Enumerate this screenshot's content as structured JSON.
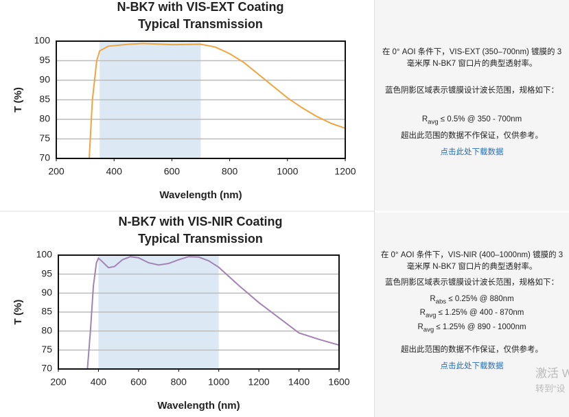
{
  "chart_data": [
    {
      "type": "line",
      "title": "N-BK7 with VIS-EXT Coating",
      "subtitle": "Typical Transmission",
      "x_label": "Wavelength (nm)",
      "y_label": "T (%)",
      "xlim": [
        200,
        1200
      ],
      "xticks": [
        200,
        400,
        600,
        800,
        1000,
        1200
      ],
      "ylim": [
        70,
        100
      ],
      "yticks": [
        70,
        75,
        80,
        85,
        90,
        95,
        100
      ],
      "grid": true,
      "band": [
        350,
        700
      ],
      "band_color": "#dce9f5",
      "x": [
        314,
        325,
        340,
        350,
        380,
        450,
        500,
        600,
        700,
        750,
        800,
        850,
        900,
        950,
        1000,
        1050,
        1100,
        1150,
        1200
      ],
      "series": [
        {
          "color": "#f0a540",
          "values": [
            70,
            85,
            95,
            97.5,
            98.7,
            99.2,
            99.4,
            99.1,
            99.2,
            98.5,
            96.8,
            94.5,
            91.5,
            88.5,
            85.5,
            83,
            80.8,
            79,
            77.7
          ]
        }
      ]
    },
    {
      "type": "line",
      "title": "N-BK7 with VIS-NIR Coating",
      "subtitle": "Typical Transmission",
      "x_label": "Wavelength (nm)",
      "y_label": "T (%)",
      "xlim": [
        200,
        1600
      ],
      "xticks": [
        200,
        400,
        600,
        800,
        1000,
        1200,
        1400,
        1600
      ],
      "ylim": [
        70,
        100
      ],
      "yticks": [
        70,
        75,
        80,
        85,
        90,
        95,
        100
      ],
      "grid": true,
      "band": [
        400,
        1000
      ],
      "band_color": "#dce9f5",
      "x": [
        345,
        360,
        375,
        390,
        400,
        415,
        450,
        480,
        520,
        560,
        600,
        650,
        700,
        750,
        800,
        850,
        900,
        950,
        1000,
        1100,
        1200,
        1300,
        1400,
        1500,
        1600
      ],
      "series": [
        {
          "color": "#a283b3",
          "values": [
            70,
            80,
            92,
            98,
            99.2,
            98.5,
            96.7,
            97,
            98.8,
            99.6,
            99.3,
            98,
            97.4,
            97.8,
            98.8,
            99.6,
            99.5,
            98.5,
            96.8,
            92,
            87.5,
            83.5,
            79.5,
            77.8,
            76.3
          ]
        }
      ]
    }
  ],
  "panels": [
    {
      "intro": [
        "在 0° AOI 条件下，VIS-EXT (350–700nm) 镀膜的 3",
        "毫米厚 N-BK7 窗口片的典型透射率。"
      ],
      "spec_intro": "蓝色阴影区域表示镀膜设计波长范围，规格如下：",
      "specs": [
        {
          "symbol": "R",
          "sub": "avg",
          "text": "≤ 0.5% @ 350 - 700nm"
        }
      ],
      "disclaimer": "超出此范围的数据不作保证，仅供参考。",
      "link": "点击此处下载数据"
    },
    {
      "intro": [
        "在 0° AOI 条件下，VIS-NIR (400–1000nm) 镀膜的 3",
        "毫米厚 N-BK7 窗口片的典型透射率。"
      ],
      "spec_intro": "蓝色阴影区域表示镀膜设计波长范围，规格如下：",
      "specs": [
        {
          "symbol": "R",
          "sub": "abs",
          "text": "≤ 0.25% @ 880nm"
        },
        {
          "symbol": "R",
          "sub": "avg",
          "text": "≤ 1.25% @ 400 - 870nm"
        },
        {
          "symbol": "R",
          "sub": "avg",
          "text": "≤ 1.25% @ 890 - 1000nm"
        }
      ],
      "disclaimer": "超出此范围的数据不作保证，仅供参考。",
      "link": "点击此处下载数据"
    }
  ],
  "watermark": [
    "激活 W",
    "转到“设"
  ]
}
